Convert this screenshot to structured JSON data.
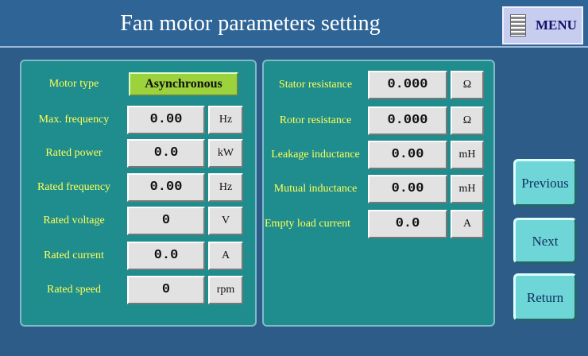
{
  "header": {
    "title": "Fan motor parameters setting",
    "menu": "MENU"
  },
  "left_params": [
    {
      "label": "Motor type",
      "value": "Asynchronous"
    },
    {
      "label": "Max. frequency",
      "value": "0.00",
      "unit": "Hz"
    },
    {
      "label": "Rated power",
      "value": "0.0",
      "unit": "kW"
    },
    {
      "label": "Rated frequency",
      "value": "0.00",
      "unit": "Hz"
    },
    {
      "label": "Rated voltage",
      "value": "0",
      "unit": "V"
    },
    {
      "label": "Rated current",
      "value": "0.0",
      "unit": "A"
    },
    {
      "label": "Rated speed",
      "value": "0",
      "unit": "rpm"
    }
  ],
  "right_params": [
    {
      "label": "Stator resistance",
      "value": "0.000",
      "unit": "Ω"
    },
    {
      "label": "Rotor resistance",
      "value": "0.000",
      "unit": "Ω"
    },
    {
      "label": "Leakage inductance",
      "value": "0.00",
      "unit": "mH"
    },
    {
      "label": "Mutual inductance",
      "value": "0.00",
      "unit": "mH"
    },
    {
      "label": "Empty load current",
      "value": "0.0",
      "unit": "A"
    }
  ],
  "buttons": [
    "Previous",
    "Next",
    "Return"
  ]
}
